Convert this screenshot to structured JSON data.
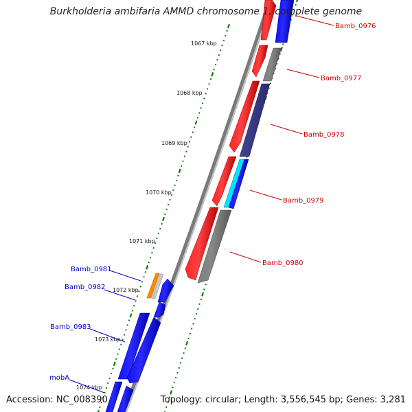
{
  "title": "Burkholderia ambifaria AMMD chromosome 1, complete genome",
  "accession": "Accession: NC_008390",
  "topology": "Topology: circular; Length: 3,556,545 bp; Genes: 3,281",
  "ticks": [
    {
      "label": "1067 kbp"
    },
    {
      "label": "1068 kbp"
    },
    {
      "label": "1069 kbp"
    },
    {
      "label": "1070 kbp"
    },
    {
      "label": "1071 kbp"
    },
    {
      "label": "1072 kbp"
    },
    {
      "label": "1073 kbp"
    },
    {
      "label": "1074 kbp"
    }
  ],
  "genes": [
    {
      "name": "Bamb_0976",
      "color": "#cc0000"
    },
    {
      "name": "Bamb_0977",
      "color": "#cc0000"
    },
    {
      "name": "Bamb_0978",
      "color": "#cc0000"
    },
    {
      "name": "Bamb_0979",
      "color": "#cc0000"
    },
    {
      "name": "Bamb_0980",
      "color": "#cc0000"
    },
    {
      "name": "Bamb_0981",
      "color": "#0000cc"
    },
    {
      "name": "Bamb_0982",
      "color": "#0000cc"
    },
    {
      "name": "Bamb_0983",
      "color": "#0000cc"
    },
    {
      "name": "mobA",
      "color": "#0000cc"
    }
  ],
  "colors": {
    "forward_cds": "#ff0000",
    "reverse_cds": "#0000ff",
    "gray_feature": "#707070",
    "purple_feature": "#3a3a8c",
    "cyan_feature": "#00e5ff",
    "orange_feature": "#ff8800",
    "backbone": "#8a8a8a",
    "tick": "#0a7a0a"
  }
}
